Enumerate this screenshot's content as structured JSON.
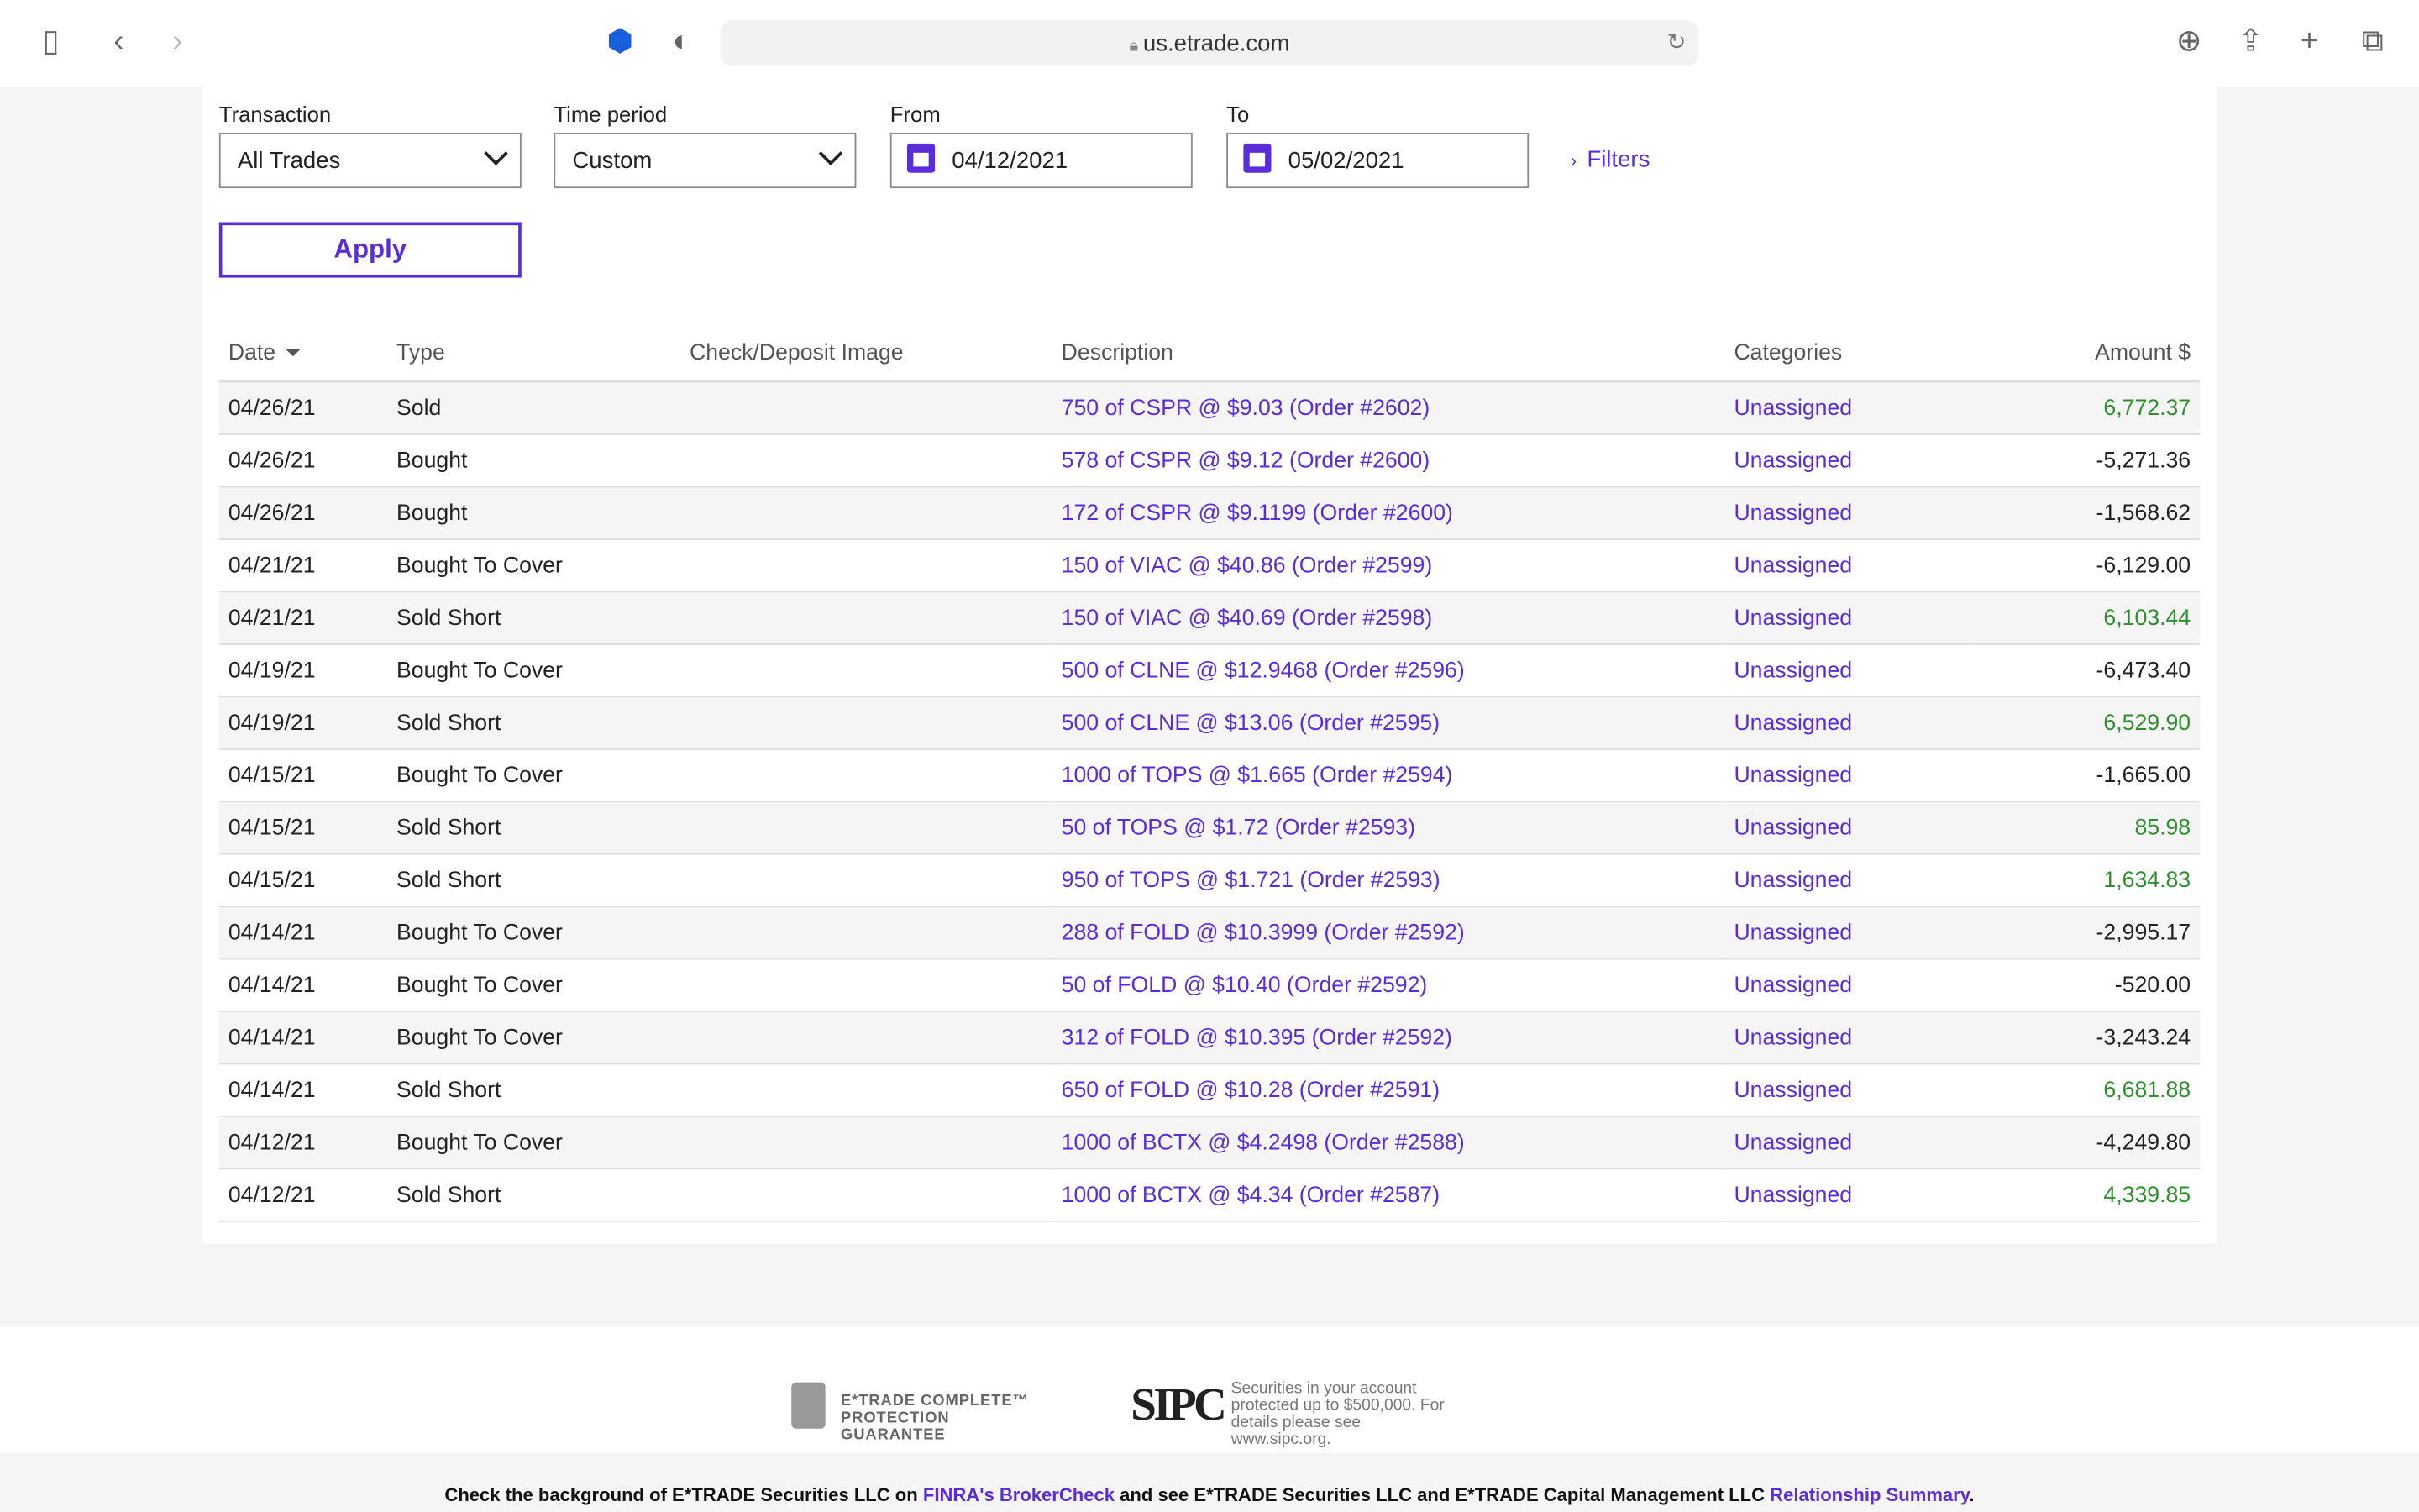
{
  "browser": {
    "url": "us.etrade.com",
    "icons": [
      "sidebar-icon",
      "back-icon",
      "forward-icon",
      "extension-icon",
      "shield-icon",
      "lock-icon",
      "reload-icon",
      "download-icon",
      "share-icon",
      "new-tab-icon",
      "tabs-icon"
    ]
  },
  "filters": {
    "transaction_label": "Transaction",
    "transaction_value": "All Trades",
    "period_label": "Time period",
    "period_value": "Custom",
    "from_label": "From",
    "from_value": "04/12/2021",
    "to_label": "To",
    "to_value": "05/02/2021",
    "filters_link": "Filters",
    "apply": "Apply"
  },
  "table": {
    "headers": [
      "Date",
      "Type",
      "Check/Deposit Image",
      "Description",
      "Categories",
      "Amount $"
    ],
    "rows": [
      [
        "04/26/21",
        "Sold",
        "750 of CSPR @ $9.03 (Order #2602)",
        "Unassigned",
        "6,772.37"
      ],
      [
        "04/26/21",
        "Bought",
        "578 of CSPR @ $9.12 (Order #2600)",
        "Unassigned",
        "-5,271.36"
      ],
      [
        "04/26/21",
        "Bought",
        "172 of CSPR @ $9.1199 (Order #2600)",
        "Unassigned",
        "-1,568.62"
      ],
      [
        "04/21/21",
        "Bought To Cover",
        "150 of VIAC @ $40.86 (Order #2599)",
        "Unassigned",
        "-6,129.00"
      ],
      [
        "04/21/21",
        "Sold Short",
        "150 of VIAC @ $40.69 (Order #2598)",
        "Unassigned",
        "6,103.44"
      ],
      [
        "04/19/21",
        "Bought To Cover",
        "500 of CLNE @ $12.9468 (Order #2596)",
        "Unassigned",
        "-6,473.40"
      ],
      [
        "04/19/21",
        "Sold Short",
        "500 of CLNE @ $13.06 (Order #2595)",
        "Unassigned",
        "6,529.90"
      ],
      [
        "04/15/21",
        "Bought To Cover",
        "1000 of TOPS @ $1.665 (Order #2594)",
        "Unassigned",
        "-1,665.00"
      ],
      [
        "04/15/21",
        "Sold Short",
        "50 of TOPS @ $1.72 (Order #2593)",
        "Unassigned",
        "85.98"
      ],
      [
        "04/15/21",
        "Sold Short",
        "950 of TOPS @ $1.721 (Order #2593)",
        "Unassigned",
        "1,634.83"
      ],
      [
        "04/14/21",
        "Bought To Cover",
        "288 of FOLD @ $10.3999 (Order #2592)",
        "Unassigned",
        "-2,995.17"
      ],
      [
        "04/14/21",
        "Bought To Cover",
        "50 of FOLD @ $10.40 (Order #2592)",
        "Unassigned",
        "-520.00"
      ],
      [
        "04/14/21",
        "Bought To Cover",
        "312 of FOLD @ $10.395 (Order #2592)",
        "Unassigned",
        "-3,243.24"
      ],
      [
        "04/14/21",
        "Sold Short",
        "650 of FOLD @ $10.28 (Order #2591)",
        "Unassigned",
        "6,681.88"
      ],
      [
        "04/12/21",
        "Bought To Cover",
        "1000 of BCTX @ $4.2498 (Order #2588)",
        "Unassigned",
        "-4,249.80"
      ],
      [
        "04/12/21",
        "Sold Short",
        "1000 of BCTX @ $4.34 (Order #2587)",
        "Unassigned",
        "4,339.85"
      ]
    ]
  },
  "colors": {
    "accent": "#5a2ddb",
    "positive": "#2f8f2f"
  },
  "footer": {
    "guarantee": "E*TRADE COMPLETE™ PROTECTION GUARANTEE",
    "sipc_logo": "SIPC",
    "sipc_text": "Securities in your account protected up to $500,000. For details please see www.sipc.org.",
    "line_1": "Check the background of E*TRADE Securities LLC on ",
    "link_1": "FINRA's BrokerCheck",
    "line_2": " and see E*TRADE Securities LLC and E*TRADE Capital Management LLC ",
    "link_2": "Relationship Summary",
    "line_3": "."
  }
}
